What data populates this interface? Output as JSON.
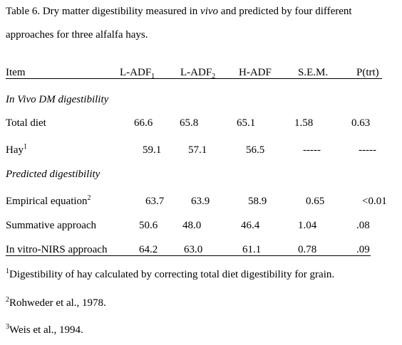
{
  "title": {
    "line1": [
      "Table 6. Dry matter digestibility measured in ",
      "vivo",
      " and predicted by four different"
    ],
    "line2": "approaches for three alfalfa hays."
  },
  "table": {
    "header": [
      {
        "text": "Item"
      },
      {
        "text": "L-ADF",
        "sub": "1"
      },
      {
        "text": "L-ADF",
        "sub": "2"
      },
      {
        "text": "H-ADF"
      },
      {
        "text": "S.E.M."
      },
      {
        "text": "P(trt)"
      }
    ],
    "rows": [
      {
        "section": "In Vivo DM digestibility"
      },
      {
        "label": "Total diet",
        "cells": [
          "66.6",
          "65.8",
          "65.1",
          "1.58",
          "0.63"
        ]
      },
      {
        "label": "Hay",
        "sup": "1",
        "cells": [
          "59.1",
          "57.1",
          "56.5",
          "-----",
          "-----"
        ]
      },
      {
        "section": "Predicted digestibility"
      },
      {
        "label": "Empirical equation",
        "sup": "2",
        "cells": [
          "63.7",
          "63.9",
          "58.9",
          "0.65",
          "<0.01"
        ]
      },
      {
        "label": "Summative approach",
        "cells": [
          "50.6",
          "48.0",
          "46.4",
          "1.04",
          ".08"
        ]
      },
      {
        "label": "In vitro-NIRS approach",
        "cells": [
          "64.2",
          "63.0",
          "61.1",
          "0.78",
          ".09"
        ]
      }
    ]
  },
  "footnotes": [
    {
      "mark": "1",
      "text": "Digestibility of hay calculated by correcting total diet digestibility for grain."
    },
    {
      "mark": "2",
      "text": "Rohweder et al., 1978."
    },
    {
      "mark": "3",
      "text": "Weis et al., 1994."
    }
  ]
}
